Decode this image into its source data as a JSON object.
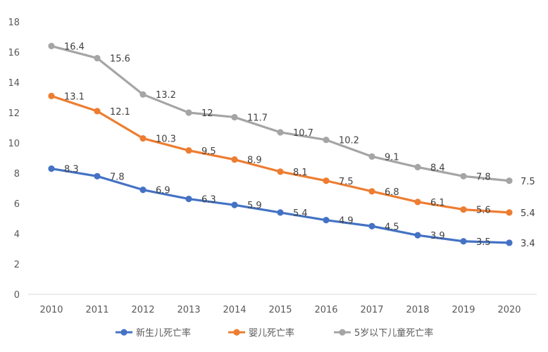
{
  "chart_data": {
    "type": "line",
    "title": "",
    "xlabel": "",
    "ylabel": "",
    "x": [
      "2010",
      "2011",
      "2012",
      "2013",
      "2014",
      "2015",
      "2016",
      "2017",
      "2018",
      "2019",
      "2020"
    ],
    "ylim": [
      0,
      18
    ],
    "yticks": [
      0,
      2,
      4,
      6,
      8,
      10,
      12,
      14,
      16,
      18
    ],
    "grid": false,
    "legend_position": "bottom",
    "series": [
      {
        "name": "新生儿死亡率",
        "color": "#4472c4",
        "values": [
          8.3,
          7.8,
          6.9,
          6.3,
          5.9,
          5.4,
          4.9,
          4.5,
          3.9,
          3.5,
          3.4
        ],
        "labels": [
          "8.3",
          "7.8",
          "6.9",
          "6.3",
          "5.9",
          "5.4",
          "4.9",
          "4.5",
          "3.9",
          "3.5",
          "3.4"
        ]
      },
      {
        "name": "婴儿死亡率",
        "color": "#ed7d31",
        "values": [
          13.1,
          12.1,
          10.3,
          9.5,
          8.9,
          8.1,
          7.5,
          6.8,
          6.1,
          5.6,
          5.4
        ],
        "labels": [
          "13.1",
          "12.1",
          "10.3",
          "9.5",
          "8.9",
          "8.1",
          "7.5",
          "6.8",
          "6.1",
          "5.6",
          "5.4"
        ]
      },
      {
        "name": "5岁以下儿童死亡率",
        "color": "#a5a5a5",
        "values": [
          16.4,
          15.6,
          13.2,
          12,
          11.7,
          10.7,
          10.2,
          9.1,
          8.4,
          7.8,
          7.5
        ],
        "labels": [
          "16.4",
          "15.6",
          "13.2",
          "12",
          "11.7",
          "10.7",
          "10.2",
          "9.1",
          "8.4",
          "7.8",
          "7.5"
        ]
      }
    ]
  }
}
